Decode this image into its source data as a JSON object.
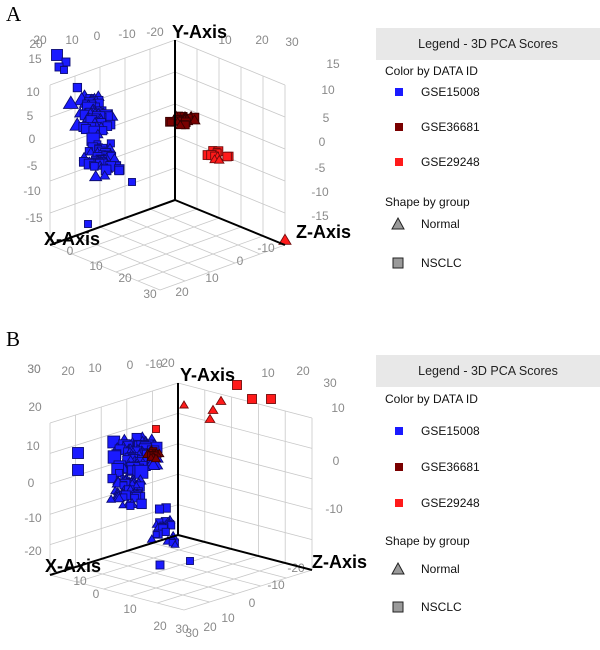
{
  "panels": [
    {
      "letter": "A"
    },
    {
      "letter": "B"
    }
  ],
  "legend": {
    "title": "Legend - 3D PCA Scores",
    "color_heading": "Color by DATA ID",
    "shape_heading": "Shape by group",
    "colors": [
      {
        "label": "GSE15008",
        "color": "#1a1aff"
      },
      {
        "label": "GSE36681",
        "color": "#7a0000"
      },
      {
        "label": "GSE29248",
        "color": "#ff1a1a"
      }
    ],
    "shapes": [
      {
        "label": "Normal",
        "shape": "triangle"
      },
      {
        "label": "NSCLC",
        "shape": "square"
      }
    ]
  },
  "chart_data": [
    {
      "type": "scatter",
      "subtype": "3d-pca",
      "axis_labels": {
        "x": "X-Axis",
        "y": "Y-Axis",
        "z": "Z-Axis"
      },
      "tick_labels": {
        "back_left": [
          "20",
          "10",
          "0",
          "-10",
          "-20"
        ],
        "left_vertical": [
          "20",
          "15",
          "10",
          "5",
          "0",
          "-5",
          "-10",
          "-15"
        ],
        "right_vertical": [
          "15",
          "10",
          "5",
          "0",
          "-5",
          "-10",
          "-15"
        ],
        "top_right": [
          "10",
          "20",
          "30"
        ],
        "bottom_left": [
          "0",
          "10",
          "20",
          "30"
        ],
        "bottom_right": [
          "20",
          "10",
          "0",
          "-10"
        ]
      },
      "series": [
        {
          "name": "GSE15008",
          "shape": "mixed",
          "approx_count": 150
        },
        {
          "name": "GSE36681",
          "shape": "mixed",
          "approx_count": 30
        },
        {
          "name": "GSE29248",
          "shape": "mixed",
          "approx_count": 13
        }
      ]
    },
    {
      "type": "scatter",
      "subtype": "3d-pca",
      "axis_labels": {
        "x": "X-Axis",
        "y": "Y-Axis",
        "z": "Z-Axis"
      },
      "tick_labels": {
        "back_left": [
          "30",
          "20",
          "10",
          "0",
          "-10",
          "-20"
        ],
        "left_vertical": [
          "30",
          "20",
          "10",
          "0",
          "-10",
          "-20"
        ],
        "right_vertical": [
          "30",
          "10",
          "0",
          "-10"
        ],
        "top_right": [
          "10",
          "20"
        ],
        "bottom_left": [
          "10",
          "0",
          "10",
          "20",
          "30"
        ],
        "bottom_right": [
          "-20",
          "-10",
          "0",
          "10",
          "20",
          "30"
        ]
      },
      "series": [
        {
          "name": "GSE15008",
          "shape": "mixed",
          "approx_count": 170
        },
        {
          "name": "GSE36681",
          "shape": "mixed",
          "approx_count": 15
        },
        {
          "name": "GSE29248",
          "shape": "mixed",
          "approx_count": 10
        }
      ]
    }
  ]
}
